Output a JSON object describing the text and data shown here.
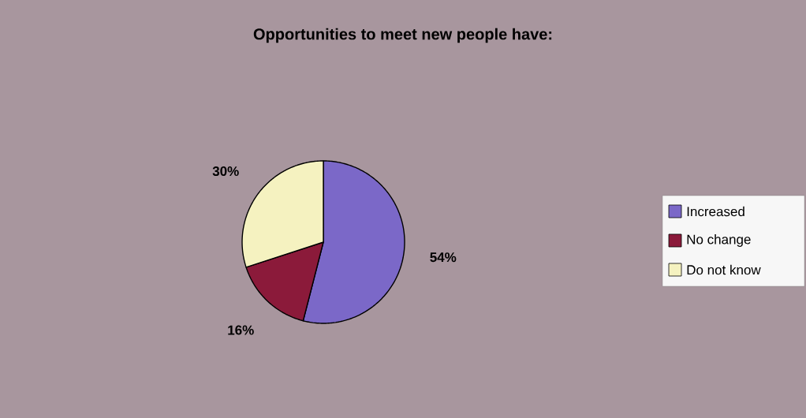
{
  "chart_data": {
    "type": "pie",
    "title": "Opportunities to meet new people have:",
    "categories": [
      "Increased",
      "No change",
      "Do not know"
    ],
    "values": [
      54,
      16,
      30
    ],
    "colors": [
      "#7b68c8",
      "#8b1a3a",
      "#f5f2c0"
    ],
    "value_labels": [
      "54%",
      "16%",
      "30%"
    ],
    "legend": "right"
  }
}
